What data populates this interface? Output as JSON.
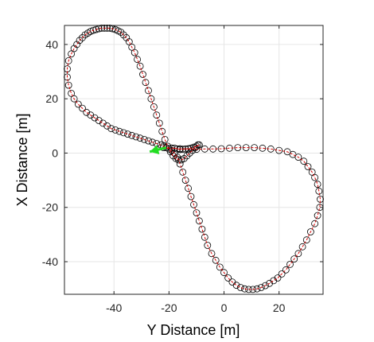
{
  "chart_data": {
    "type": "scatter",
    "title": "",
    "xlabel": "Y Distance [m]",
    "ylabel": "X Distance [m]",
    "xlim": [
      -58,
      36
    ],
    "ylim": [
      -52,
      47
    ],
    "xticks": [
      -40,
      -20,
      0,
      20
    ],
    "yticks": [
      -40,
      -20,
      0,
      20,
      40
    ],
    "grid": true,
    "legend": "none",
    "colors": {
      "markers": "#000000",
      "trajectory": "#d40000",
      "arrow": "#22dd22",
      "grid": "#e6e6e6",
      "frame": "#262626"
    },
    "series": [
      {
        "style": "circle-markers",
        "x": [
          -22,
          -19,
          -16,
          -13,
          -10,
          -7,
          -4,
          -1,
          2,
          5,
          8,
          11,
          14,
          17,
          20,
          23,
          25,
          27,
          29,
          30.5,
          32,
          33,
          34,
          34.5,
          35,
          34.8,
          34,
          33,
          31.5,
          30,
          28.5,
          27,
          25.5,
          24,
          22.5,
          21,
          19.5,
          18,
          16.5,
          15,
          13.5,
          12,
          10.5,
          9,
          7.5,
          6,
          4.5,
          3,
          1.5,
          0,
          -1.5,
          -3,
          -4.5,
          -6,
          -7,
          -8,
          -9,
          -10,
          -11,
          -12,
          -13,
          -14,
          -15,
          -16,
          -17,
          -18,
          -19,
          -20,
          -21,
          -22,
          -23,
          -24.5,
          -26,
          -27.5,
          -29,
          -30.5,
          -32,
          -33.5,
          -35,
          -36.5,
          -38,
          -39.5,
          -41,
          -42.5,
          -44,
          -45.5,
          -47,
          -48.5,
          -50,
          -51.5,
          -53,
          -54.5,
          -55.5,
          -56.5,
          -57,
          -57,
          -56.5,
          -55.5,
          -54.5,
          -53.5,
          -52.5,
          -51.5,
          -50.5,
          -49.5,
          -48.5,
          -47.5,
          -46.5,
          -45.5,
          -44.5,
          -43.5,
          -42.5,
          -41.5,
          -40.5,
          -39.5,
          -38.5,
          -37.5,
          -36.5,
          -35.5,
          -34.5,
          -33.5,
          -32.5,
          -31.5,
          -30.5,
          -29.5,
          -28.5,
          -27.5,
          -26.5,
          -25.5,
          -24.5,
          -23.5,
          -22.5,
          -21.5,
          -20.5,
          -19.5,
          -18.5,
          -17.5,
          -16.5,
          -15.5,
          -14.5,
          -13.5,
          -12.5,
          -11.5,
          -10.5,
          -9.5,
          -9,
          -10,
          -11,
          -12,
          -13,
          -14,
          -15,
          -16,
          -17,
          -18,
          -19
        ],
        "y": [
          2,
          1.8,
          1.6,
          1.5,
          1.4,
          1.5,
          1.5,
          1.6,
          1.8,
          2,
          2,
          2,
          1.8,
          1.5,
          1,
          0.5,
          -0.5,
          -1.5,
          -3,
          -5,
          -7,
          -9,
          -11.5,
          -14,
          -17,
          -20,
          -23,
          -26,
          -29,
          -32,
          -34.5,
          -37,
          -39,
          -41,
          -43,
          -44.5,
          -46,
          -47,
          -48,
          -48.8,
          -49.5,
          -50,
          -50.2,
          -50.2,
          -50,
          -49.5,
          -48.7,
          -47.5,
          -46,
          -44,
          -42,
          -39.5,
          -37,
          -34,
          -31,
          -28,
          -25,
          -22,
          -19,
          -16,
          -13,
          -10,
          -7,
          -4,
          -1.5,
          0,
          1,
          1.5,
          2,
          2.5,
          3,
          3.5,
          4,
          4.5,
          5,
          5.5,
          6,
          6.5,
          7,
          7.5,
          8,
          8.5,
          9,
          10,
          11,
          12,
          13,
          14,
          15,
          16.5,
          18,
          20,
          22,
          25,
          28,
          31,
          34,
          36.5,
          38.5,
          40,
          41.5,
          42.5,
          43.5,
          44.2,
          44.8,
          45.2,
          45.5,
          45.8,
          46,
          46,
          46,
          46,
          45.8,
          45.5,
          45,
          44.5,
          43.5,
          42.5,
          41,
          39,
          37,
          34.5,
          32,
          29,
          26,
          23,
          20,
          17,
          14,
          11,
          8,
          5,
          2.5,
          0.5,
          -1,
          -2,
          -2.5,
          -2.5,
          -2,
          -1,
          0,
          1,
          2,
          3,
          3,
          2.5,
          2.2,
          1.8,
          1.6,
          1.5,
          1.4,
          1.3,
          1.5,
          1.8,
          1.8
        ]
      },
      {
        "style": "red-dashed-line",
        "x": [
          -22,
          -19,
          -16,
          -13,
          -10,
          -7,
          -4,
          -1,
          2,
          5,
          8,
          11,
          14,
          17,
          20,
          23,
          25,
          27,
          29,
          30.5,
          32,
          33,
          34,
          34.5,
          35,
          34.8,
          34,
          33,
          31.5,
          30,
          28.5,
          27,
          25.5,
          24,
          22.5,
          21,
          19.5,
          18,
          16.5,
          15,
          13.5,
          12,
          10.5,
          9,
          7.5,
          6,
          4.5,
          3,
          1.5,
          0,
          -1.5,
          -3,
          -4.5,
          -6,
          -7,
          -8,
          -9,
          -10,
          -11,
          -12,
          -13,
          -14,
          -15,
          -16,
          -17,
          -18,
          -19,
          -20,
          -21,
          -22,
          -23,
          -24.5,
          -26,
          -27.5,
          -29,
          -30.5,
          -32,
          -33.5,
          -35,
          -36.5,
          -38,
          -39.5,
          -41,
          -42.5,
          -44,
          -45.5,
          -47,
          -48.5,
          -50,
          -51.5,
          -53,
          -54.5,
          -55.5,
          -56.5,
          -57,
          -57,
          -56.5,
          -55.5,
          -54.5,
          -53.5,
          -52.5,
          -51.5,
          -50.5,
          -49.5,
          -48.5,
          -47.5,
          -46.5,
          -45.5,
          -44.5,
          -43.5,
          -42.5,
          -41.5,
          -40.5,
          -39.5,
          -38.5,
          -37.5,
          -36.5,
          -35.5,
          -34.5,
          -33.5,
          -32.5,
          -31.5,
          -30.5,
          -29.5,
          -28.5,
          -27.5,
          -26.5,
          -25.5,
          -24.5,
          -23.5,
          -22.5,
          -21.5,
          -20.5,
          -19.5,
          -18.5,
          -17.5,
          -16.5,
          -15.5,
          -14.5,
          -13.5,
          -12.5,
          -11.5,
          -10.5,
          -9.5,
          -9,
          -10,
          -11,
          -12,
          -13,
          -14,
          -15,
          -16,
          -17,
          -18,
          -19
        ],
        "y": [
          2,
          1.8,
          1.6,
          1.5,
          1.4,
          1.5,
          1.5,
          1.6,
          1.8,
          2,
          2,
          2,
          1.8,
          1.5,
          1,
          0.5,
          -0.5,
          -1.5,
          -3,
          -5,
          -7,
          -9,
          -11.5,
          -14,
          -17,
          -20,
          -23,
          -26,
          -29,
          -32,
          -34.5,
          -37,
          -39,
          -41,
          -43,
          -44.5,
          -46,
          -47,
          -48,
          -48.8,
          -49.5,
          -50,
          -50.2,
          -50.2,
          -50,
          -49.5,
          -48.7,
          -47.5,
          -46,
          -44,
          -42,
          -39.5,
          -37,
          -34,
          -31,
          -28,
          -25,
          -22,
          -19,
          -16,
          -13,
          -10,
          -7,
          -4,
          -1.5,
          0,
          1,
          1.5,
          2,
          2.5,
          3,
          3.5,
          4,
          4.5,
          5,
          5.5,
          6,
          6.5,
          7,
          7.5,
          8,
          8.5,
          9,
          10,
          11,
          12,
          13,
          14,
          15,
          16.5,
          18,
          20,
          22,
          25,
          28,
          31,
          34,
          36.5,
          38.5,
          40,
          41.5,
          42.5,
          43.5,
          44.2,
          44.8,
          45.2,
          45.5,
          45.8,
          46,
          46,
          46,
          46,
          45.8,
          45.5,
          45,
          44.5,
          43.5,
          42.5,
          41,
          39,
          37,
          34.5,
          32,
          29,
          26,
          23,
          20,
          17,
          14,
          11,
          8,
          5,
          2.5,
          0.5,
          -1,
          -2,
          -2.5,
          -2.5,
          -2,
          -1,
          0,
          1,
          2,
          3,
          3,
          2.5,
          2.2,
          1.8,
          1.6,
          1.5,
          1.4,
          1.3,
          1.5,
          1.8,
          1.8
        ]
      }
    ],
    "annotations": [
      {
        "type": "arrow",
        "x": -27,
        "y": 0.5,
        "dx": 6,
        "dy": 1.5
      }
    ]
  }
}
